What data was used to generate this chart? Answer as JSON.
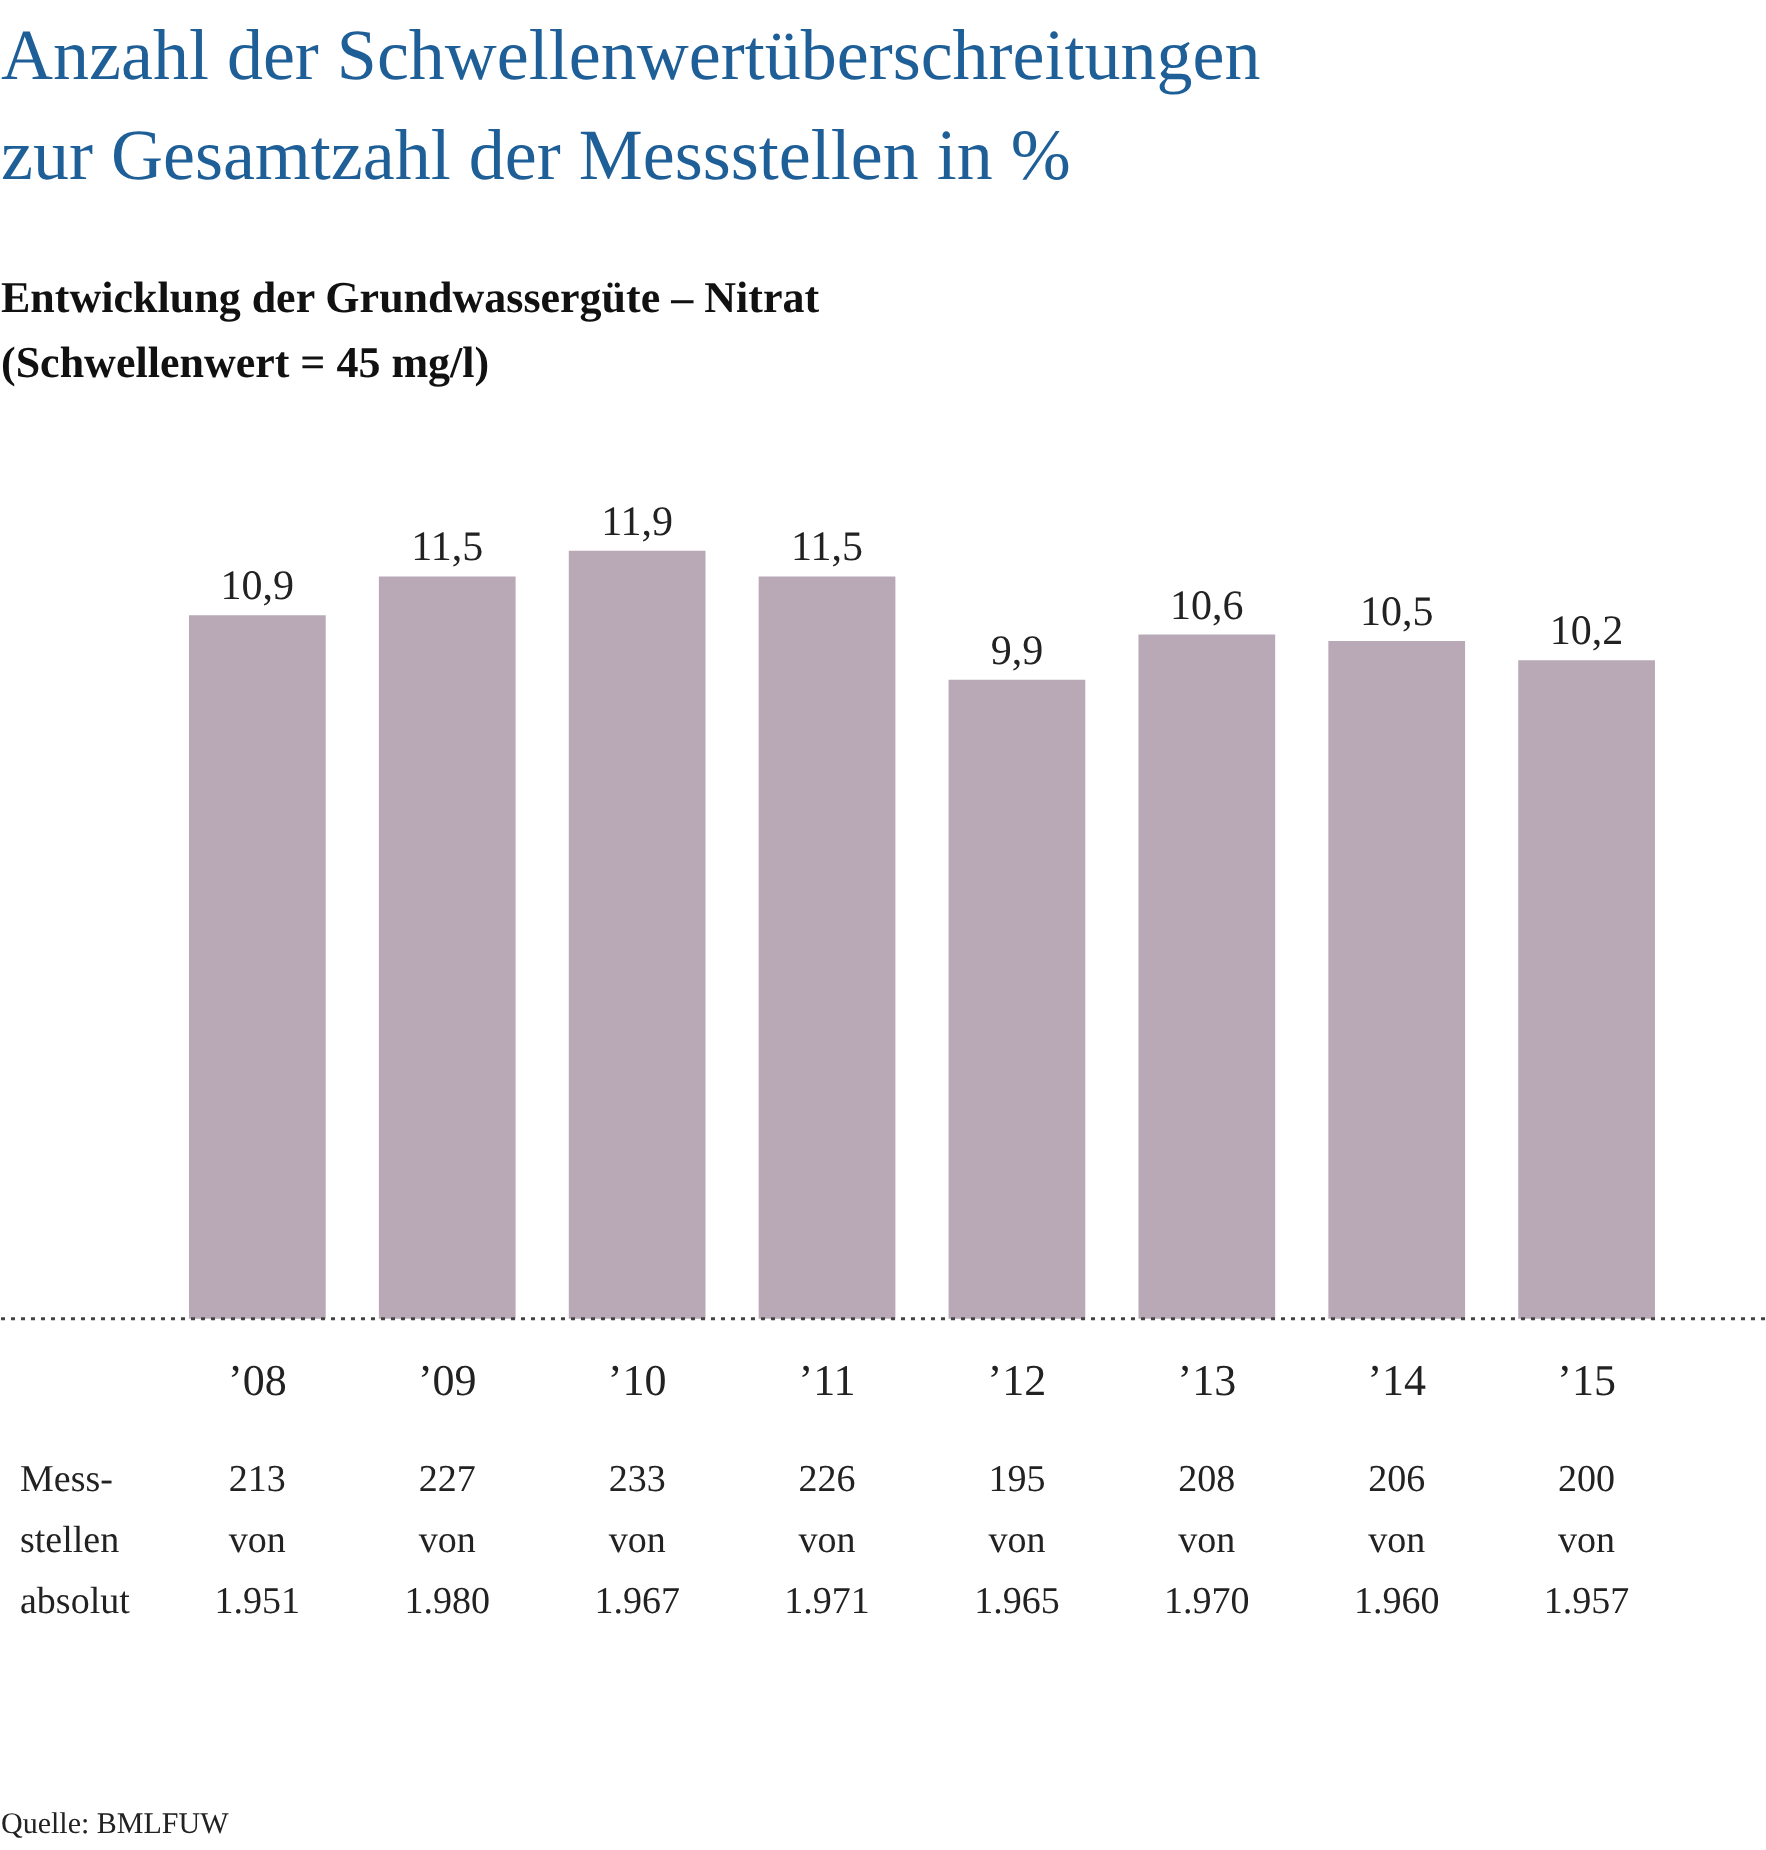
{
  "chart_data": {
    "type": "bar",
    "title": "Anzahl der Schwellenwertüberschreitungen\nzur Gesamtzahl der Messstellen in %",
    "subtitle": "Entwicklung der Grundwassergüte – Nitrat\n(Schwellenwert = 45 mg/l)",
    "categories": [
      "’08",
      "’09",
      "’10",
      "’11",
      "’12",
      "’13",
      "’14",
      "’15"
    ],
    "values": [
      10.9,
      11.5,
      11.9,
      11.5,
      9.9,
      10.6,
      10.5,
      10.2
    ],
    "color": "#b9a9b7",
    "value_labels": [
      "10,9",
      "11,5",
      "11,9",
      "11,5",
      "9,9",
      "10,6",
      "10,5",
      "10,2"
    ],
    "annotations": [
      "Mess-\nstellen\nabsolut",
      "213\nvon\n1.951",
      "227\nvon\n1.980",
      "233\nvon\n1.967",
      "226\nvon\n1.971",
      "195\nvon\n1.965",
      "208\nvon\n1.970",
      "206\nvon\n1.960",
      "200\nvon\n1.957",
      "Quelle: BMLFUW"
    ]
  }
}
